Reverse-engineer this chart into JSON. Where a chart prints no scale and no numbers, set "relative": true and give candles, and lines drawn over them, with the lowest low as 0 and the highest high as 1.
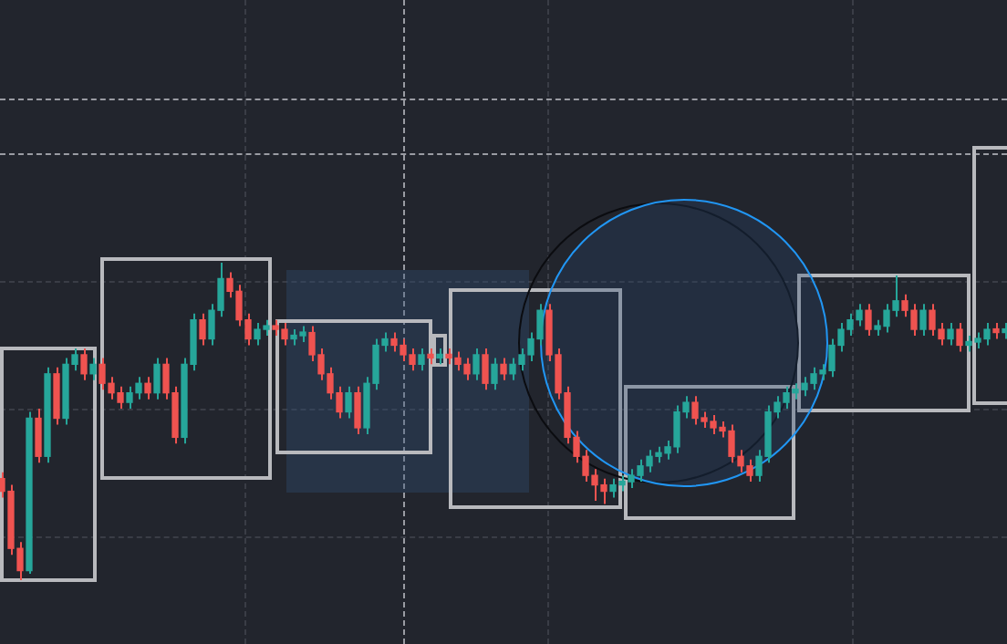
{
  "chart_data": {
    "type": "candlestick",
    "relative": true,
    "categories": [
      null,
      null,
      null,
      null,
      null,
      null,
      null,
      null,
      null,
      null,
      null,
      null,
      null,
      null,
      null,
      null,
      null,
      null,
      null,
      null,
      null,
      null,
      null,
      null,
      null,
      null,
      null,
      null,
      null,
      null,
      null,
      null,
      null,
      null,
      null,
      null,
      null,
      null,
      null,
      null,
      null,
      null,
      null,
      null,
      null,
      null,
      null,
      null,
      null,
      null,
      null,
      null,
      null,
      null,
      null,
      null,
      null,
      null,
      null,
      null,
      null,
      null,
      null,
      null,
      null,
      null,
      null,
      null,
      null,
      null,
      null,
      null,
      null,
      null,
      null,
      null,
      null,
      null,
      null,
      null,
      null,
      null,
      null,
      null,
      null,
      null,
      null,
      null,
      null,
      null,
      null,
      null,
      null,
      null,
      null,
      null,
      null,
      null,
      null,
      null,
      null,
      null,
      null,
      null,
      null,
      null,
      null,
      null,
      null,
      null,
      null
    ],
    "ohlc": [
      [
        0.32,
        0.34,
        0.26,
        0.28
      ],
      [
        0.28,
        0.3,
        0.08,
        0.1
      ],
      [
        0.1,
        0.12,
        0,
        0.03
      ],
      [
        0.03,
        0.53,
        0.02,
        0.51
      ],
      [
        0.51,
        0.54,
        0.37,
        0.39
      ],
      [
        0.39,
        0.67,
        0.37,
        0.65
      ],
      [
        0.65,
        0.67,
        0.49,
        0.51
      ],
      [
        0.51,
        0.7,
        0.49,
        0.68
      ],
      [
        0.68,
        0.73,
        0.66,
        0.71
      ],
      [
        0.71,
        0.73,
        0.63,
        0.65
      ],
      [
        0.65,
        0.7,
        0.63,
        0.68
      ],
      [
        0.68,
        0.7,
        0.6,
        0.62
      ],
      [
        0.62,
        0.64,
        0.57,
        0.59
      ],
      [
        0.59,
        0.61,
        0.54,
        0.56
      ],
      [
        0.56,
        0.61,
        0.54,
        0.59
      ],
      [
        0.59,
        0.64,
        0.57,
        0.62
      ],
      [
        0.62,
        0.64,
        0.57,
        0.59
      ],
      [
        0.59,
        0.7,
        0.57,
        0.68
      ],
      [
        0.68,
        0.7,
        0.57,
        0.59
      ],
      [
        0.59,
        0.61,
        0.43,
        0.45
      ],
      [
        0.45,
        0.7,
        0.43,
        0.68
      ],
      [
        0.68,
        0.84,
        0.66,
        0.82
      ],
      [
        0.82,
        0.84,
        0.74,
        0.76
      ],
      [
        0.76,
        0.87,
        0.74,
        0.85
      ],
      [
        0.85,
        1,
        0.83,
        0.95
      ],
      [
        0.95,
        0.97,
        0.89,
        0.91
      ],
      [
        0.91,
        0.93,
        0.8,
        0.82
      ],
      [
        0.82,
        0.84,
        0.74,
        0.76
      ],
      [
        0.76,
        0.81,
        0.74,
        0.79
      ],
      [
        0.79,
        0.82,
        0.77,
        0.8
      ],
      [
        0.8,
        0.82,
        0.77,
        0.79
      ],
      [
        0.79,
        0.81,
        0.74,
        0.76
      ],
      [
        0.76,
        0.79,
        0.74,
        0.77
      ],
      [
        0.77,
        0.8,
        0.75,
        0.78
      ],
      [
        0.78,
        0.8,
        0.69,
        0.71
      ],
      [
        0.71,
        0.73,
        0.63,
        0.65
      ],
      [
        0.65,
        0.67,
        0.57,
        0.59
      ],
      [
        0.59,
        0.61,
        0.51,
        0.53
      ],
      [
        0.53,
        0.61,
        0.51,
        0.59
      ],
      [
        0.59,
        0.61,
        0.46,
        0.48
      ],
      [
        0.48,
        0.64,
        0.46,
        0.62
      ],
      [
        0.62,
        0.76,
        0.6,
        0.74
      ],
      [
        0.74,
        0.78,
        0.72,
        0.76
      ],
      [
        0.76,
        0.78,
        0.72,
        0.74
      ],
      [
        0.74,
        0.76,
        0.69,
        0.71
      ],
      [
        0.71,
        0.73,
        0.66,
        0.68
      ],
      [
        0.68,
        0.73,
        0.66,
        0.71
      ],
      [
        0.71,
        0.73,
        0.68,
        0.7
      ],
      [
        0.7,
        0.73,
        0.68,
        0.71
      ],
      [
        0.71,
        0.73,
        0.68,
        0.7
      ],
      [
        0.7,
        0.72,
        0.66,
        0.68
      ],
      [
        0.68,
        0.7,
        0.63,
        0.65
      ],
      [
        0.65,
        0.73,
        0.63,
        0.71
      ],
      [
        0.71,
        0.73,
        0.6,
        0.62
      ],
      [
        0.62,
        0.7,
        0.6,
        0.68
      ],
      [
        0.68,
        0.7,
        0.63,
        0.65
      ],
      [
        0.65,
        0.7,
        0.63,
        0.68
      ],
      [
        0.68,
        0.73,
        0.66,
        0.71
      ],
      [
        0.71,
        0.78,
        0.69,
        0.76
      ],
      [
        0.76,
        0.87,
        0.74,
        0.85
      ],
      [
        0.85,
        0.87,
        0.69,
        0.71
      ],
      [
        0.71,
        0.73,
        0.57,
        0.59
      ],
      [
        0.59,
        0.61,
        0.43,
        0.45
      ],
      [
        0.45,
        0.47,
        0.37,
        0.39
      ],
      [
        0.39,
        0.41,
        0.31,
        0.33
      ],
      [
        0.33,
        0.35,
        0.25,
        0.3
      ],
      [
        0.3,
        0.32,
        0.24,
        0.28
      ],
      [
        0.28,
        0.32,
        0.26,
        0.3
      ],
      [
        0.3,
        0.33,
        0.28,
        0.31
      ],
      [
        0.31,
        0.35,
        0.29,
        0.33
      ],
      [
        0.33,
        0.38,
        0.31,
        0.36
      ],
      [
        0.36,
        0.41,
        0.34,
        0.39
      ],
      [
        0.39,
        0.42,
        0.37,
        0.4
      ],
      [
        0.4,
        0.44,
        0.38,
        0.42
      ],
      [
        0.42,
        0.55,
        0.4,
        0.53
      ],
      [
        0.53,
        0.58,
        0.51,
        0.56
      ],
      [
        0.56,
        0.58,
        0.49,
        0.51
      ],
      [
        0.51,
        0.53,
        0.48,
        0.5
      ],
      [
        0.5,
        0.52,
        0.46,
        0.48
      ],
      [
        0.48,
        0.5,
        0.45,
        0.47
      ],
      [
        0.47,
        0.49,
        0.37,
        0.39
      ],
      [
        0.39,
        0.41,
        0.34,
        0.36
      ],
      [
        0.36,
        0.38,
        0.31,
        0.33
      ],
      [
        0.33,
        0.41,
        0.31,
        0.39
      ],
      [
        0.39,
        0.55,
        0.37,
        0.53
      ],
      [
        0.53,
        0.58,
        0.51,
        0.56
      ],
      [
        0.56,
        0.61,
        0.54,
        0.59
      ],
      [
        0.59,
        0.62,
        0.57,
        0.6
      ],
      [
        0.6,
        0.64,
        0.58,
        0.62
      ],
      [
        0.62,
        0.67,
        0.6,
        0.65
      ],
      [
        0.65,
        0.68,
        0.63,
        0.66
      ],
      [
        0.66,
        0.76,
        0.64,
        0.74
      ],
      [
        0.74,
        0.81,
        0.72,
        0.79
      ],
      [
        0.79,
        0.84,
        0.77,
        0.82
      ],
      [
        0.82,
        0.87,
        0.8,
        0.85
      ],
      [
        0.85,
        0.87,
        0.77,
        0.79
      ],
      [
        0.79,
        0.82,
        0.77,
        0.8
      ],
      [
        0.8,
        0.87,
        0.78,
        0.85
      ],
      [
        0.85,
        0.96,
        0.83,
        0.88
      ],
      [
        0.88,
        0.9,
        0.83,
        0.85
      ],
      [
        0.85,
        0.87,
        0.77,
        0.79
      ],
      [
        0.79,
        0.87,
        0.77,
        0.85
      ],
      [
        0.85,
        0.87,
        0.77,
        0.79
      ],
      [
        0.79,
        0.81,
        0.74,
        0.76
      ],
      [
        0.76,
        0.81,
        0.74,
        0.79
      ],
      [
        0.79,
        0.81,
        0.72,
        0.74
      ],
      [
        0.74,
        0.77,
        0.72,
        0.75
      ],
      [
        0.75,
        0.78,
        0.73,
        0.76
      ],
      [
        0.76,
        0.81,
        0.74,
        0.79
      ],
      [
        0.79,
        0.81,
        0.76,
        0.78
      ],
      [
        0.78,
        0.81,
        0.76,
        0.79
      ]
    ],
    "colors": [
      "#ef5350",
      "#ef5350",
      "#ef5350",
      "#26a69a",
      "#ef5350",
      "#26a69a",
      "#ef5350",
      "#26a69a",
      "#26a69a",
      "#ef5350",
      "#26a69a",
      "#ef5350",
      "#ef5350",
      "#ef5350",
      "#26a69a",
      "#26a69a",
      "#ef5350",
      "#26a69a",
      "#ef5350",
      "#ef5350",
      "#26a69a",
      "#26a69a",
      "#ef5350",
      "#26a69a",
      "#26a69a",
      "#ef5350",
      "#ef5350",
      "#ef5350",
      "#26a69a",
      "#26a69a",
      "#ef5350",
      "#ef5350",
      "#26a69a",
      "#26a69a",
      "#ef5350",
      "#ef5350",
      "#ef5350",
      "#ef5350",
      "#26a69a",
      "#ef5350",
      "#26a69a",
      "#26a69a",
      "#26a69a",
      "#ef5350",
      "#ef5350",
      "#ef5350",
      "#26a69a",
      "#ef5350",
      "#26a69a",
      "#ef5350",
      "#ef5350",
      "#ef5350",
      "#26a69a",
      "#ef5350",
      "#26a69a",
      "#ef5350",
      "#26a69a",
      "#26a69a",
      "#26a69a",
      "#26a69a",
      "#ef5350",
      "#ef5350",
      "#ef5350",
      "#ef5350",
      "#ef5350",
      "#ef5350",
      "#ef5350",
      "#26a69a",
      "#26a69a",
      "#26a69a",
      "#26a69a",
      "#26a69a",
      "#26a69a",
      "#26a69a",
      "#26a69a",
      "#26a69a",
      "#ef5350",
      "#ef5350",
      "#ef5350",
      "#ef5350",
      "#ef5350",
      "#ef5350",
      "#ef5350",
      "#26a69a",
      "#26a69a",
      "#26a69a",
      "#26a69a",
      "#26a69a",
      "#26a69a",
      "#26a69a",
      "#26a69a",
      "#26a69a",
      "#26a69a",
      "#26a69a",
      "#26a69a",
      "#ef5350",
      "#26a69a",
      "#26a69a",
      "#26a69a",
      "#ef5350",
      "#ef5350",
      "#26a69a",
      "#ef5350",
      "#ef5350",
      "#26a69a",
      "#ef5350",
      "#26a69a",
      "#26a69a",
      "#26a69a",
      "#ef5350",
      "#26a69a"
    ]
  }
}
